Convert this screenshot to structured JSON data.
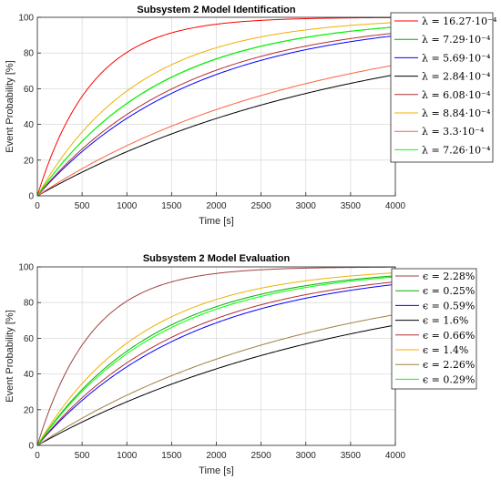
{
  "chart_data": [
    {
      "type": "line",
      "title": "Subsystem 2 Model Identification",
      "xlabel": "Time [s]",
      "ylabel": "Event Probability [%]",
      "xlim": [
        0,
        4000
      ],
      "ylim": [
        0,
        100
      ],
      "xticks": [
        0,
        500,
        1000,
        1500,
        2000,
        2500,
        3000,
        3500,
        4000
      ],
      "yticks": [
        0,
        20,
        40,
        60,
        80,
        100
      ],
      "grid": true,
      "legend_position": "outside-top-right",
      "model": "y = 100*(1 - exp(-lambda*t))",
      "series": [
        {
          "name": "λ = 16.27·10⁻⁴",
          "lambda": 0.001627,
          "color": "#ff0000"
        },
        {
          "name": "λ = 7.29·10⁻⁴",
          "lambda": 0.000729,
          "color": "#00b000"
        },
        {
          "name": "λ = 5.69·10⁻⁴",
          "lambda": 0.000569,
          "color": "#0000ff"
        },
        {
          "name": "λ = 2.84·10⁻⁴",
          "lambda": 0.000284,
          "color": "#000000"
        },
        {
          "name": "λ = 6.08·10⁻⁴",
          "lambda": 0.000608,
          "color": "#b03030"
        },
        {
          "name": "λ = 8.84·10⁻⁴",
          "lambda": 0.000884,
          "color": "#f0b000"
        },
        {
          "name": "λ = 3.3·10⁻⁴",
          "lambda": 0.00033,
          "color": "#ff6040"
        },
        {
          "name": "λ = 7.26·10⁻⁴",
          "lambda": 0.000726,
          "color": "#00ff00"
        }
      ]
    },
    {
      "type": "line",
      "title": "Subsystem 2 Model Evaluation",
      "xlabel": "Time [s]",
      "ylabel": "Event Probability [%]",
      "xlim": [
        0,
        4000
      ],
      "ylim": [
        0,
        100
      ],
      "xticks": [
        0,
        500,
        1000,
        1500,
        2000,
        2500,
        3000,
        3500,
        4000
      ],
      "yticks": [
        0,
        20,
        40,
        60,
        80,
        100
      ],
      "grid": true,
      "legend_position": "top-right",
      "model": "y = 100*(1 - exp(-lambda*t))",
      "series": [
        {
          "name": "ϵ = 2.28%",
          "lambda": 0.00165,
          "color": "#a04040"
        },
        {
          "name": "ϵ = 0.25%",
          "lambda": 0.00075,
          "color": "#00b000"
        },
        {
          "name": "ϵ = 0.59%",
          "lambda": 0.00058,
          "color": "#0000ff"
        },
        {
          "name": "ϵ = 1.6%",
          "lambda": 0.00028,
          "color": "#000000"
        },
        {
          "name": "ϵ = 0.66%",
          "lambda": 0.00062,
          "color": "#b03030"
        },
        {
          "name": "ϵ = 1.4%",
          "lambda": 0.00085,
          "color": "#f0b000"
        },
        {
          "name": "ϵ = 2.26%",
          "lambda": 0.00033,
          "color": "#a08040"
        },
        {
          "name": "ϵ = 0.29%",
          "lambda": 0.00072,
          "color": "#00ff00"
        }
      ]
    }
  ]
}
